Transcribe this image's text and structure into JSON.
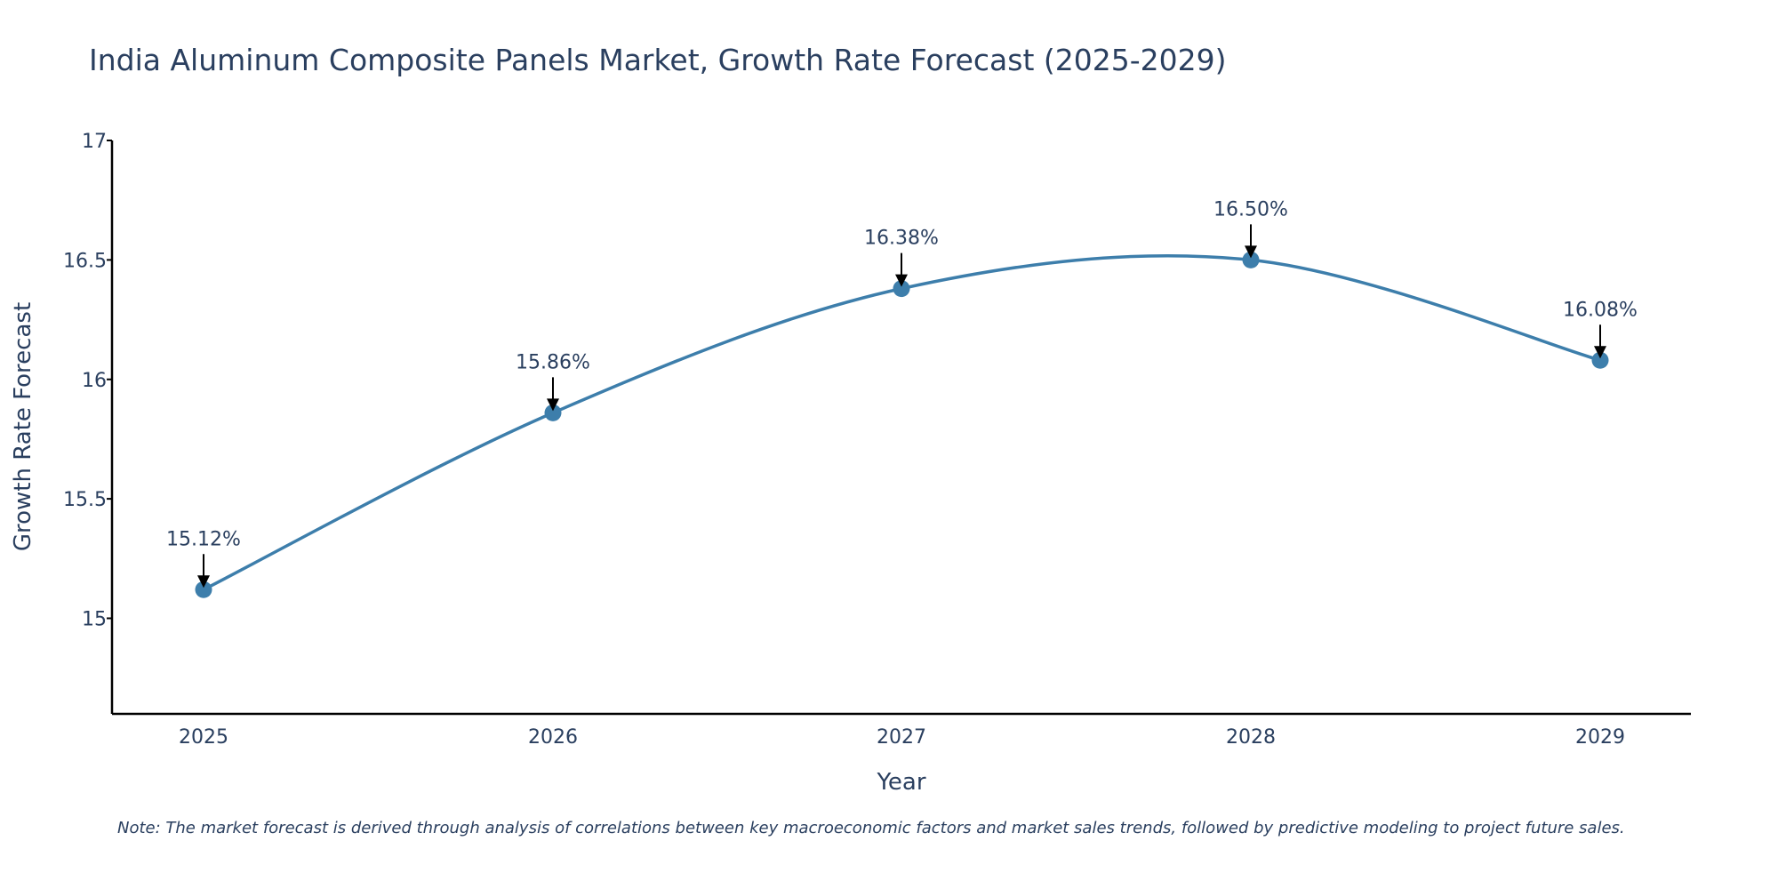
{
  "chart_data": {
    "type": "line",
    "title": "India Aluminum Composite Panels Market, Growth Rate Forecast (2025-2029)",
    "xlabel": "Year",
    "ylabel": "Growth Rate Forecast",
    "categories": [
      "2025",
      "2026",
      "2027",
      "2028",
      "2029"
    ],
    "values": [
      15.12,
      15.86,
      16.38,
      16.5,
      16.08
    ],
    "data_labels": [
      "15.12%",
      "15.86%",
      "16.38%",
      "16.50%",
      "16.08%"
    ],
    "ylim": [
      14.6,
      17
    ],
    "yticks": [
      15,
      15.5,
      16,
      16.5,
      17
    ],
    "ytick_labels": [
      "15",
      "15.5",
      "16",
      "16.5",
      "17"
    ],
    "grid": false,
    "line_shape": "spline",
    "colors": {
      "line": "#3d7eab",
      "marker": "#3d7eab",
      "axis": "#000000",
      "arrow": "#000000",
      "text": "#2a3f5f"
    }
  },
  "note": "Note: The market forecast is derived through analysis of correlations between key macroeconomic factors and market sales trends, followed by predictive modeling to project future sales."
}
